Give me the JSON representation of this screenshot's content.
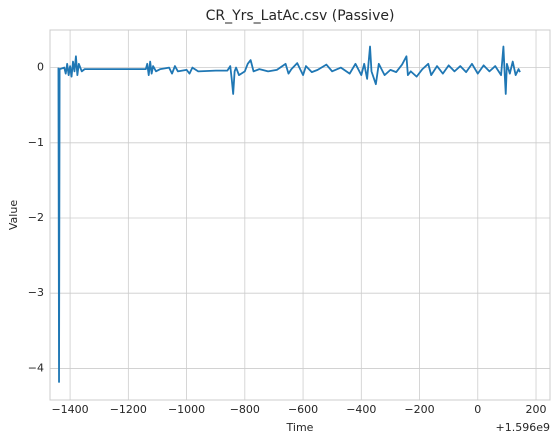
{
  "chart_data": {
    "type": "line",
    "title": "CR_Yrs_LatAc.csv (Passive)",
    "x_label": "Time",
    "y_label": "Value",
    "x_offset_label": "+1.596e9",
    "x": [
      -1440,
      -1438,
      -1436,
      -1420,
      -1415,
      -1410,
      -1405,
      -1400,
      -1395,
      -1390,
      -1385,
      -1380,
      -1375,
      -1370,
      -1360,
      -1350,
      -1300,
      -1200,
      -1140,
      -1135,
      -1130,
      -1125,
      -1120,
      -1115,
      -1105,
      -1090,
      -1060,
      -1050,
      -1040,
      -1030,
      -1000,
      -990,
      -980,
      -960,
      -900,
      -860,
      -850,
      -845,
      -840,
      -835,
      -830,
      -820,
      -800,
      -790,
      -780,
      -770,
      -750,
      -720,
      -690,
      -660,
      -650,
      -640,
      -620,
      -600,
      -590,
      -570,
      -550,
      -520,
      -500,
      -470,
      -440,
      -420,
      -400,
      -390,
      -380,
      -370,
      -365,
      -350,
      -340,
      -320,
      -300,
      -280,
      -260,
      -245,
      -240,
      -230,
      -210,
      -190,
      -170,
      -160,
      -140,
      -120,
      -100,
      -80,
      -60,
      -40,
      -20,
      0,
      20,
      40,
      60,
      80,
      88,
      92,
      96,
      100,
      110,
      120,
      130,
      140,
      145
    ],
    "series": [
      {
        "name": "value",
        "color": "#1f77b4",
        "values": [
          0,
          -4.18,
          -0.02,
          0,
          -0.08,
          0.05,
          -0.1,
          0.02,
          -0.12,
          0.08,
          -0.05,
          0.15,
          -0.1,
          0.05,
          -0.05,
          -0.02,
          -0.02,
          -0.02,
          -0.02,
          0.05,
          -0.1,
          0.08,
          -0.08,
          0.02,
          -0.05,
          -0.02,
          0,
          -0.08,
          0.02,
          -0.05,
          -0.03,
          -0.08,
          0,
          -0.05,
          -0.04,
          -0.04,
          0.02,
          -0.15,
          -0.35,
          -0.05,
          0,
          -0.1,
          -0.05,
          0.05,
          0.1,
          -0.05,
          -0.02,
          -0.05,
          -0.03,
          0.05,
          -0.08,
          -0.02,
          0.06,
          -0.1,
          0.02,
          -0.06,
          -0.03,
          0.04,
          -0.05,
          0,
          -0.08,
          0.05,
          -0.1,
          0.05,
          -0.15,
          0.28,
          -0.05,
          -0.22,
          0.05,
          -0.1,
          -0.03,
          -0.06,
          0.04,
          0.15,
          -0.1,
          -0.05,
          -0.12,
          -0.02,
          0.05,
          -0.1,
          0.02,
          -0.08,
          0.03,
          -0.05,
          0.02,
          -0.06,
          0.05,
          -0.08,
          0.03,
          -0.05,
          0.02,
          -0.1,
          0.28,
          -0.05,
          -0.35,
          0.05,
          -0.08,
          0.08,
          -0.1,
          -0.02,
          -0.06
        ]
      }
    ],
    "xlim": [
      -1469,
      248
    ],
    "xticks": [
      {
        "value": -1400,
        "label": "−1400"
      },
      {
        "value": -1200,
        "label": "−1200"
      },
      {
        "value": -1000,
        "label": "−1000"
      },
      {
        "value": -800,
        "label": "−800"
      },
      {
        "value": -600,
        "label": "−600"
      },
      {
        "value": -400,
        "label": "−400"
      },
      {
        "value": -200,
        "label": "−200"
      },
      0,
      200
    ],
    "ylim": [
      -4.42,
      0.5
    ],
    "yticks": [
      0,
      {
        "value": -1,
        "label": "−1"
      },
      {
        "value": -2,
        "label": "−2"
      },
      {
        "value": -3,
        "label": "−3"
      },
      {
        "value": -4,
        "label": "−4"
      }
    ],
    "grid": true
  }
}
